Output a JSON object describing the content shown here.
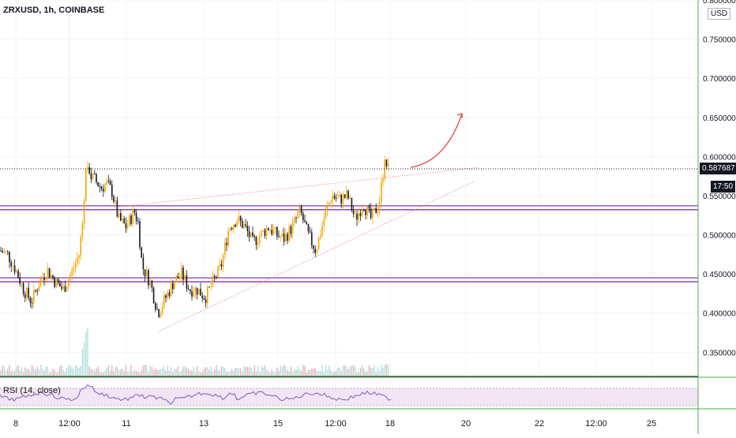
{
  "header": {
    "title": "ZRXUSD, 1h, COINBASE"
  },
  "axis": {
    "currency": "USD",
    "y_ticks": [
      "0.800000",
      "0.750000",
      "0.700000",
      "0.650000",
      "0.600000",
      "0.550000",
      "0.500000",
      "0.450000",
      "0.400000",
      "0.350000"
    ],
    "x_ticks": [
      "8",
      "12:00",
      "11",
      "13",
      "15",
      "12:00",
      "18",
      "20",
      "22",
      "12:00",
      "25"
    ]
  },
  "last_price": "0.587687",
  "countdown": "17:50",
  "rsi": {
    "label": "RSI (14, close)"
  },
  "colors": {
    "up": "#f7a600",
    "down": "#131722",
    "support": "#7b1fa2",
    "trend": "#e57373",
    "rsi": "#7e57c2",
    "axis_line": "#4caf50"
  },
  "chart_data": {
    "type": "candlestick",
    "title": "ZRXUSD, 1h, COINBASE",
    "ylim": [
      0.32,
      0.8
    ],
    "close_path": [
      [
        0,
        0.48
      ],
      [
        10,
        0.475
      ],
      [
        20,
        0.455
      ],
      [
        30,
        0.43
      ],
      [
        40,
        0.415
      ],
      [
        50,
        0.44
      ],
      [
        60,
        0.455
      ],
      [
        70,
        0.44
      ],
      [
        80,
        0.43
      ],
      [
        90,
        0.45
      ],
      [
        100,
        0.475
      ],
      [
        105,
        0.52
      ],
      [
        110,
        0.6
      ],
      [
        115,
        0.575
      ],
      [
        120,
        0.57
      ],
      [
        128,
        0.56
      ],
      [
        135,
        0.565
      ],
      [
        142,
        0.555
      ],
      [
        150,
        0.52
      ],
      [
        160,
        0.51
      ],
      [
        170,
        0.53
      ],
      [
        175,
        0.515
      ],
      [
        180,
        0.46
      ],
      [
        190,
        0.44
      ],
      [
        200,
        0.4
      ],
      [
        210,
        0.42
      ],
      [
        220,
        0.44
      ],
      [
        230,
        0.45
      ],
      [
        240,
        0.43
      ],
      [
        250,
        0.43
      ],
      [
        260,
        0.42
      ],
      [
        270,
        0.44
      ],
      [
        280,
        0.46
      ],
      [
        290,
        0.51
      ],
      [
        300,
        0.52
      ],
      [
        310,
        0.51
      ],
      [
        320,
        0.49
      ],
      [
        330,
        0.5
      ],
      [
        340,
        0.51
      ],
      [
        350,
        0.5
      ],
      [
        360,
        0.495
      ],
      [
        370,
        0.51
      ],
      [
        380,
        0.53
      ],
      [
        390,
        0.5
      ],
      [
        400,
        0.48
      ],
      [
        410,
        0.52
      ],
      [
        420,
        0.55
      ],
      [
        430,
        0.545
      ],
      [
        440,
        0.55
      ],
      [
        450,
        0.52
      ],
      [
        460,
        0.54
      ],
      [
        470,
        0.52
      ],
      [
        480,
        0.54
      ],
      [
        487,
        0.595
      ],
      [
        492,
        0.585
      ]
    ],
    "horizontal_levels": [
      0.537,
      0.532,
      0.445,
      0.44
    ],
    "trendlines": [
      {
        "from": [
          145,
          0.535
        ],
        "to": [
          605,
          0.586
        ],
        "style": "dotted"
      },
      {
        "from": [
          200,
          0.376
        ],
        "to": [
          600,
          0.568
        ],
        "style": "dotted"
      }
    ],
    "projection_arrow": {
      "from": [
        520,
        0.586
      ],
      "to": [
        585,
        0.655
      ]
    }
  }
}
